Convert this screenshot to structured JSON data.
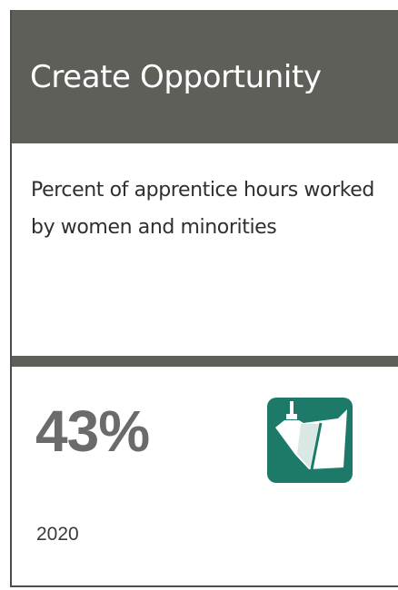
{
  "card": {
    "title": "Create Opportunity",
    "description": "Percent of apprentice hours worked by women and minorities",
    "metric": {
      "value": "43%",
      "year": "2020",
      "icon": "boat-hull-icon"
    }
  },
  "colors": {
    "header_bg": "#5f5f5a",
    "title_text": "#ffffff",
    "metric_text": "#6b6b6b",
    "icon_bg": "#1e7a68"
  }
}
